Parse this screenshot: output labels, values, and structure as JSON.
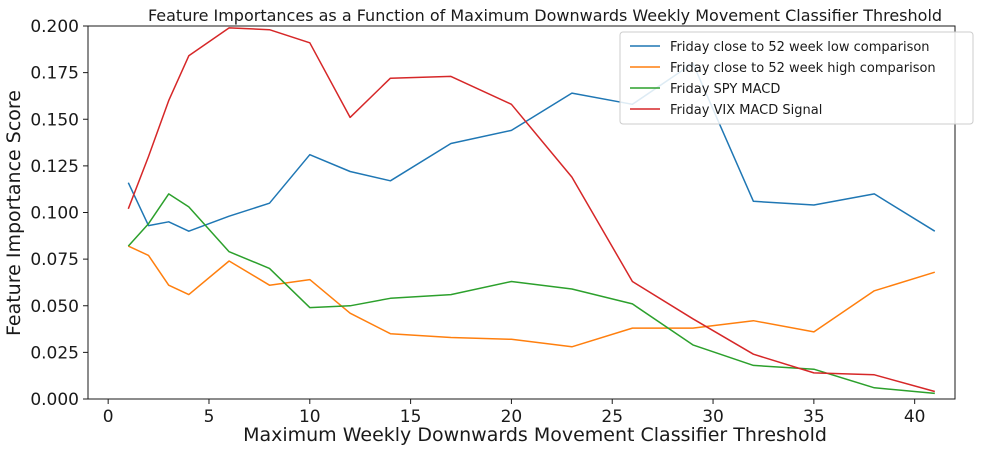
{
  "chart_data": {
    "type": "line",
    "title": "Feature Importances as a Function of Maximum Downwards Weekly Movement Classifier Threshold",
    "xlabel": "Maximum Weekly Downwards Movement Classifier Threshold",
    "ylabel": "Feature Importance Score",
    "xlim": [
      -1,
      42
    ],
    "ylim": [
      0,
      0.2
    ],
    "x_ticks": [
      0,
      5,
      10,
      15,
      20,
      25,
      30,
      35,
      40
    ],
    "x_tick_labels": [
      "0",
      "5",
      "10",
      "15",
      "20",
      "25",
      "30",
      "35",
      "40"
    ],
    "y_ticks": [
      0,
      0.025,
      0.05,
      0.075,
      0.1,
      0.125,
      0.15,
      0.175,
      0.2
    ],
    "y_tick_labels": [
      "0.000",
      "0.025",
      "0.050",
      "0.075",
      "0.100",
      "0.125",
      "0.150",
      "0.175",
      "0.200"
    ],
    "grid": false,
    "legend_position": "top-right",
    "series": [
      {
        "name": "Friday close to 52 week low comparison",
        "color": "#1f77b4",
        "x": [
          1,
          2,
          3,
          4,
          6,
          8,
          10,
          12,
          14,
          17,
          20,
          23,
          26,
          29,
          32,
          35,
          38,
          41
        ],
        "values": [
          0.116,
          0.093,
          0.095,
          0.09,
          0.098,
          0.105,
          0.131,
          0.122,
          0.117,
          0.137,
          0.144,
          0.164,
          0.158,
          0.18,
          0.106,
          0.104,
          0.11,
          0.09
        ]
      },
      {
        "name": "Friday close to 52 week high comparison",
        "color": "#ff7f0e",
        "x": [
          1,
          2,
          3,
          4,
          6,
          8,
          10,
          12,
          14,
          17,
          20,
          23,
          26,
          29,
          32,
          35,
          38,
          41
        ],
        "values": [
          0.082,
          0.077,
          0.061,
          0.056,
          0.074,
          0.061,
          0.064,
          0.046,
          0.035,
          0.033,
          0.032,
          0.028,
          0.038,
          0.038,
          0.042,
          0.036,
          0.058,
          0.068
        ]
      },
      {
        "name": "Friday SPY MACD",
        "color": "#2ca02c",
        "x": [
          1,
          2,
          3,
          4,
          6,
          8,
          10,
          12,
          14,
          17,
          20,
          23,
          26,
          29,
          32,
          35,
          38,
          41
        ],
        "values": [
          0.082,
          0.094,
          0.11,
          0.103,
          0.079,
          0.07,
          0.049,
          0.05,
          0.054,
          0.056,
          0.063,
          0.059,
          0.051,
          0.029,
          0.018,
          0.016,
          0.006,
          0.003
        ]
      },
      {
        "name": "Friday VIX MACD Signal",
        "color": "#d62728",
        "x": [
          1,
          2,
          3,
          4,
          6,
          8,
          10,
          12,
          14,
          17,
          20,
          23,
          26,
          29,
          32,
          35,
          38,
          41
        ],
        "values": [
          0.102,
          0.13,
          0.16,
          0.184,
          0.199,
          0.198,
          0.191,
          0.151,
          0.172,
          0.173,
          0.158,
          0.119,
          0.063,
          0.043,
          0.024,
          0.014,
          0.013,
          0.004
        ]
      }
    ]
  }
}
